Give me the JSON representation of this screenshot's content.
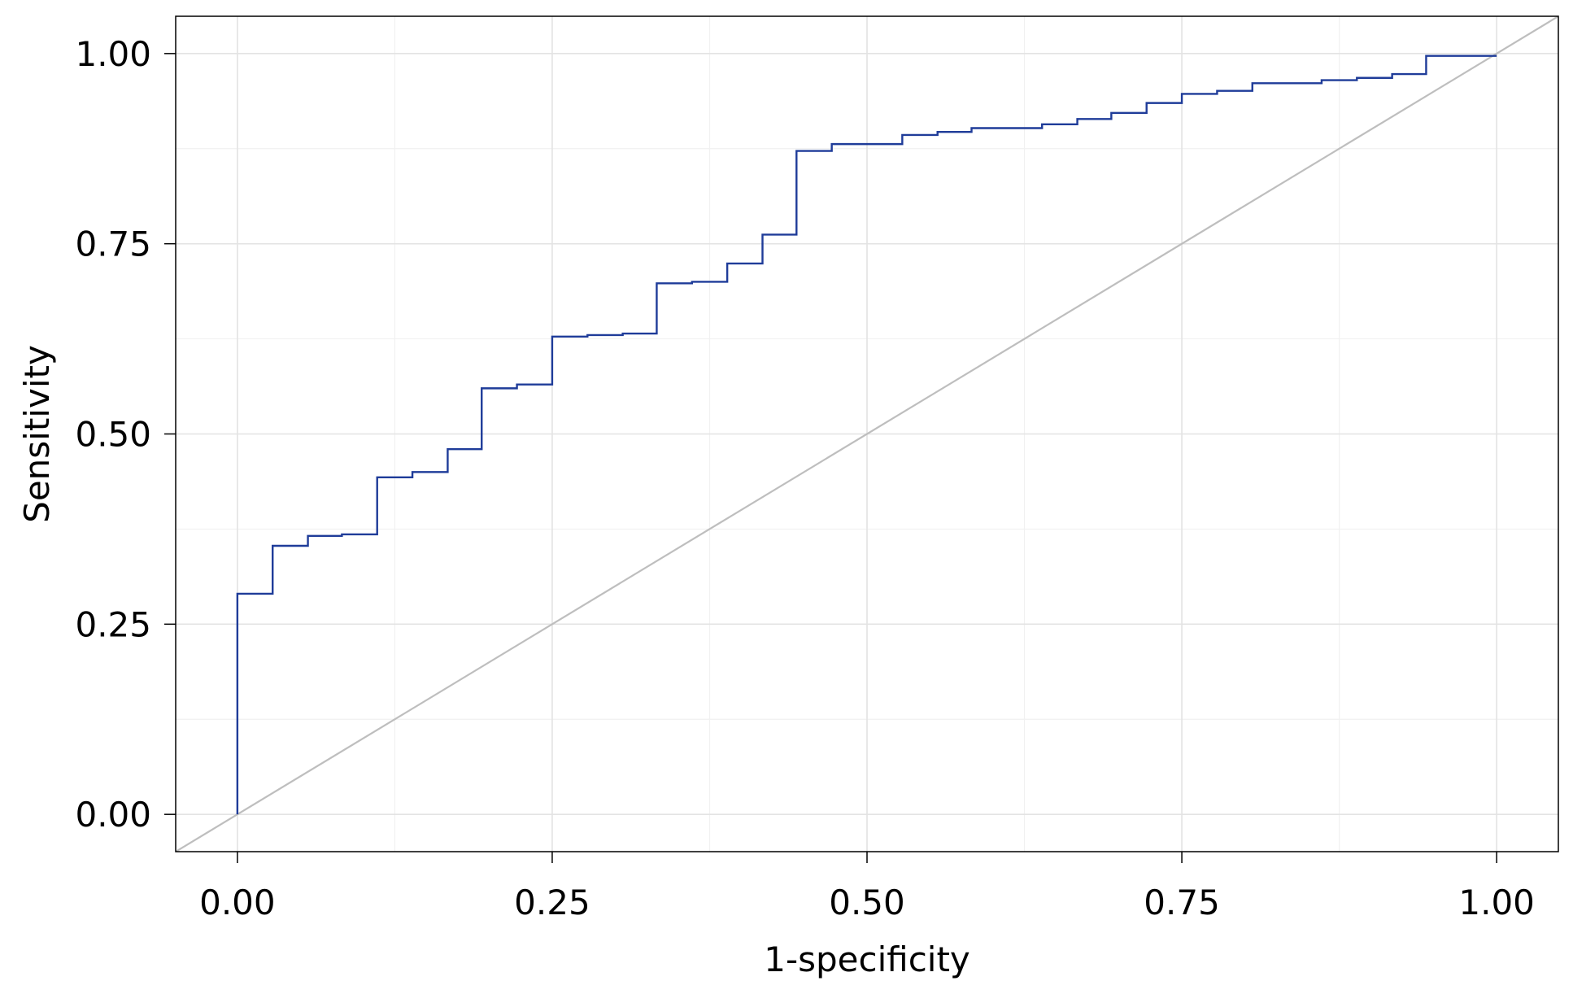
{
  "chart_data": {
    "type": "line",
    "title": "",
    "xlabel": "1-specificity",
    "ylabel": "Sensitivity",
    "xlim": [
      -0.049,
      1.049
    ],
    "ylim": [
      -0.049,
      1.049
    ],
    "x_ticks": [
      0,
      0.25,
      0.5,
      0.75,
      1
    ],
    "x_tick_labels": [
      "0.00",
      "0.25",
      "0.50",
      "0.75",
      "1.00"
    ],
    "y_ticks": [
      0,
      0.25,
      0.5,
      0.75,
      1
    ],
    "y_tick_labels": [
      "0.00",
      "0.25",
      "0.50",
      "0.75",
      "1.00"
    ],
    "grid": true,
    "legend": "none",
    "step": "vertical-then-horizontal",
    "colors": {
      "roc_line": "#1f3c99",
      "reference_line": "#bebebe",
      "grid_major": "#e3e3e3",
      "grid_minor": "#f1f1f1",
      "frame": "#000000"
    },
    "series": [
      {
        "x": [
          0,
          0.028,
          0.056,
          0.083,
          0.111,
          0.139,
          0.167,
          0.194,
          0.222,
          0.25,
          0.278,
          0.306,
          0.333,
          0.361,
          0.389,
          0.417,
          0.444,
          0.472,
          0.528,
          0.556,
          0.583,
          0.639,
          0.667,
          0.694,
          0.722,
          0.75,
          0.778,
          0.806,
          0.861,
          0.889,
          0.917,
          0.944,
          1.0
        ],
        "y": [
          0.29,
          0.353,
          0.366,
          0.368,
          0.443,
          0.45,
          0.48,
          0.56,
          0.565,
          0.628,
          0.63,
          0.632,
          0.698,
          0.7,
          0.724,
          0.762,
          0.872,
          0.881,
          0.893,
          0.897,
          0.902,
          0.907,
          0.914,
          0.922,
          0.935,
          0.947,
          0.951,
          0.961,
          0.965,
          0.968,
          0.973,
          0.997,
          0.997
        ]
      },
      {
        "x": [
          -0.049,
          1.049
        ],
        "y": [
          -0.049,
          1.049
        ]
      }
    ]
  }
}
